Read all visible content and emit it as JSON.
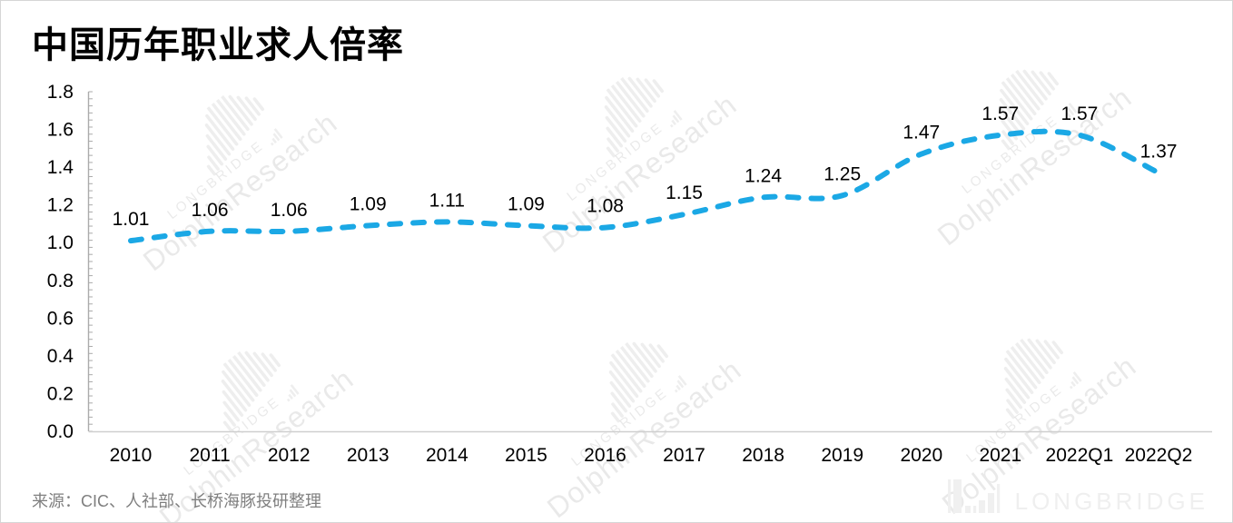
{
  "title": "中国历年职业求人倍率",
  "source": "来源：CIC、人社部、长桥海豚投研整理",
  "watermark": {
    "brand": "LONGBRIDGE",
    "research": "DolphinResearch"
  },
  "footer_logo": {
    "text": "LONGBRIDGE"
  },
  "colors": {
    "line": "#1BA8E5",
    "axis": "#ABABAB",
    "x_axis_line": "#CFCFCF",
    "muted_text": "#7F7F7F",
    "watermark": "rgba(0,0,0,0.08)"
  },
  "chart_data": {
    "type": "line",
    "title": "中国历年职业求人倍率",
    "categories": [
      "2010",
      "2011",
      "2012",
      "2013",
      "2014",
      "2015",
      "2016",
      "2017",
      "2018",
      "2019",
      "2020",
      "2021",
      "2022Q1",
      "2022Q2"
    ],
    "values": [
      1.01,
      1.06,
      1.06,
      1.09,
      1.11,
      1.09,
      1.08,
      1.15,
      1.24,
      1.25,
      1.47,
      1.57,
      1.57,
      1.37
    ],
    "xlabel": "",
    "ylabel": "",
    "ylim": [
      0,
      1.8
    ],
    "yticks": [
      0.0,
      0.2,
      0.4,
      0.6,
      0.8,
      1.0,
      1.2,
      1.4,
      1.6,
      1.8
    ],
    "grid": false,
    "legend": "none",
    "line_style": "dashed",
    "smoothed": true,
    "data_labels": true
  }
}
